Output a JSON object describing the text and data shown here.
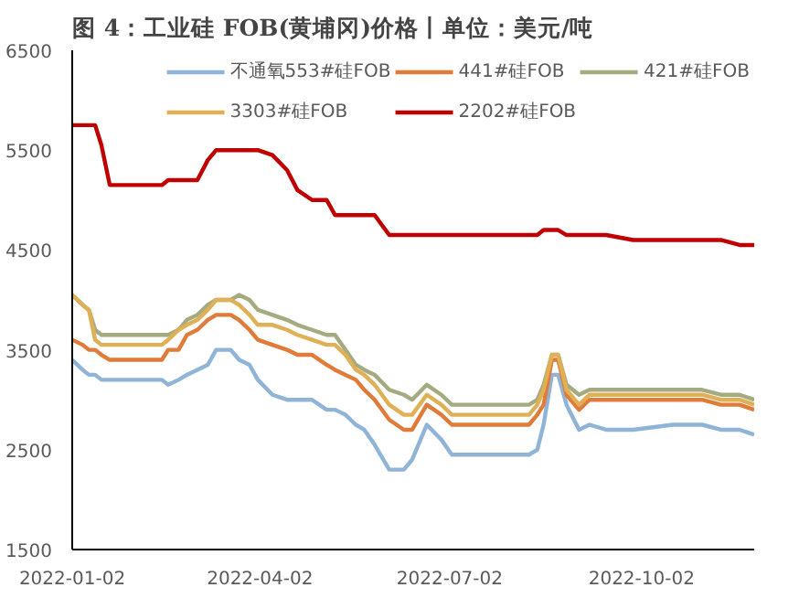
{
  "chart_data": {
    "type": "line",
    "title": "图 4：工业硅 FOB(黄埔冈)价格丨单位：美元/吨",
    "x": [
      "2022-01-02",
      "2022-01-07",
      "2022-01-10",
      "2022-01-13",
      "2022-01-16",
      "2022-01-20",
      "2022-02-14",
      "2022-02-17",
      "2022-02-22",
      "2022-02-26",
      "2022-03-03",
      "2022-03-08",
      "2022-03-12",
      "2022-03-19",
      "2022-03-23",
      "2022-03-28",
      "2022-04-01",
      "2022-04-08",
      "2022-04-15",
      "2022-04-20",
      "2022-04-27",
      "2022-05-04",
      "2022-05-08",
      "2022-05-13",
      "2022-05-18",
      "2022-05-22",
      "2022-05-27",
      "2022-06-03",
      "2022-06-10",
      "2022-06-14",
      "2022-06-21",
      "2022-06-28",
      "2022-07-03",
      "2022-07-17",
      "2022-07-30",
      "2022-08-09",
      "2022-08-13",
      "2022-08-16",
      "2022-08-20",
      "2022-08-23",
      "2022-08-27",
      "2022-09-02",
      "2022-09-07",
      "2022-09-15",
      "2022-09-28",
      "2022-10-17",
      "2022-10-31",
      "2022-11-09",
      "2022-11-18",
      "2022-11-25"
    ],
    "series": [
      {
        "name": "不通氧553#硅FOB",
        "color": "#8fb4d8",
        "values": [
          3400,
          3300,
          3250,
          3250,
          3200,
          3200,
          3200,
          3150,
          3200,
          3250,
          3300,
          3350,
          3500,
          3500,
          3400,
          3350,
          3200,
          3050,
          3000,
          3000,
          3000,
          2900,
          2900,
          2850,
          2750,
          2700,
          2550,
          2300,
          2300,
          2400,
          2750,
          2600,
          2450,
          2450,
          2450,
          2450,
          2500,
          2750,
          3250,
          3250,
          2950,
          2700,
          2750,
          2700,
          2700,
          2750,
          2750,
          2700,
          2700,
          2650
        ]
      },
      {
        "name": "441#硅FOB",
        "color": "#e07b39",
        "values": [
          3600,
          3550,
          3500,
          3500,
          3450,
          3400,
          3400,
          3500,
          3500,
          3650,
          3700,
          3800,
          3850,
          3850,
          3800,
          3700,
          3600,
          3550,
          3500,
          3450,
          3450,
          3350,
          3300,
          3250,
          3200,
          3100,
          3000,
          2800,
          2700,
          2700,
          2950,
          2850,
          2750,
          2750,
          2750,
          2750,
          2850,
          2950,
          3400,
          3400,
          3050,
          2900,
          3000,
          3000,
          3000,
          3000,
          3000,
          2950,
          2950,
          2900
        ]
      },
      {
        "name": "421#硅FOB",
        "color": "#a5ab80",
        "values": [
          4050,
          3950,
          3900,
          3700,
          3650,
          3650,
          3650,
          3650,
          3700,
          3800,
          3850,
          3950,
          4000,
          4000,
          4050,
          4000,
          3900,
          3850,
          3800,
          3750,
          3700,
          3650,
          3650,
          3500,
          3350,
          3300,
          3250,
          3100,
          3050,
          3000,
          3150,
          3050,
          2950,
          2950,
          2950,
          2950,
          3000,
          3150,
          3450,
          3450,
          3150,
          3050,
          3100,
          3100,
          3100,
          3100,
          3100,
          3050,
          3050,
          3000
        ]
      },
      {
        "name": "3303#硅FOB",
        "color": "#dfb055",
        "values": [
          4050,
          3950,
          3900,
          3600,
          3550,
          3550,
          3550,
          3600,
          3700,
          3750,
          3800,
          3900,
          4000,
          4000,
          3950,
          3850,
          3750,
          3750,
          3700,
          3650,
          3600,
          3550,
          3550,
          3450,
          3300,
          3250,
          3150,
          2950,
          2850,
          2850,
          3050,
          2950,
          2850,
          2850,
          2850,
          2850,
          2950,
          3100,
          3450,
          3450,
          3100,
          2950,
          3050,
          3050,
          3050,
          3050,
          3050,
          3000,
          3000,
          2950
        ]
      },
      {
        "name": "2202#硅FOB",
        "color": "#c00000",
        "values": [
          5750,
          5750,
          5750,
          5750,
          5550,
          5150,
          5150,
          5200,
          5200,
          5200,
          5200,
          5400,
          5500,
          5500,
          5500,
          5500,
          5500,
          5450,
          5300,
          5100,
          5000,
          5000,
          4850,
          4850,
          4850,
          4850,
          4850,
          4650,
          4650,
          4650,
          4650,
          4650,
          4650,
          4650,
          4650,
          4650,
          4650,
          4700,
          4700,
          4700,
          4650,
          4650,
          4650,
          4650,
          4600,
          4600,
          4600,
          4600,
          4550,
          4550
        ]
      }
    ],
    "xlim": [
      "2022-01-02",
      "2022-11-25"
    ],
    "xticks": [
      "2022-01-02",
      "2022-04-02",
      "2022-07-02",
      "2022-10-02"
    ],
    "ylim": [
      1500,
      6500
    ],
    "yticks": [
      1500,
      2500,
      3500,
      4500,
      5500,
      6500
    ],
    "grid": false,
    "legend": "top",
    "marker": "none",
    "line_style": "solid"
  }
}
